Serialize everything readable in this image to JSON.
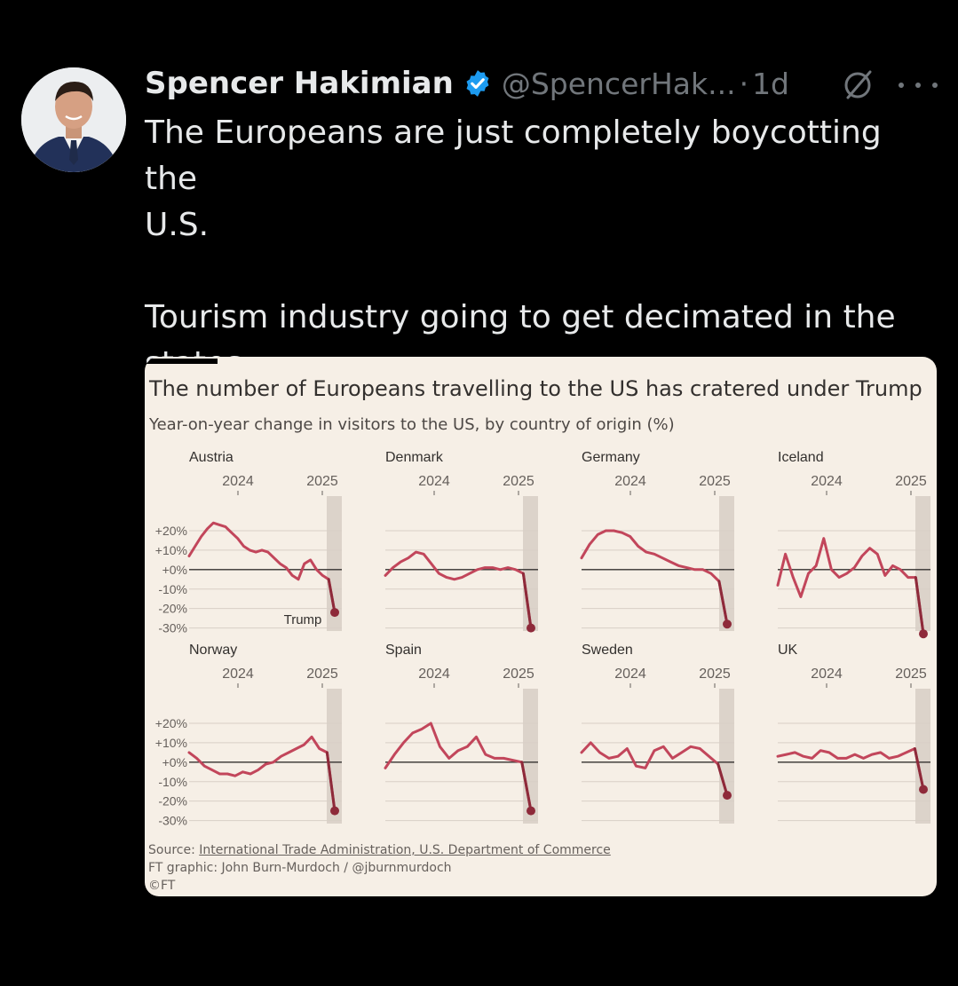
{
  "tweet": {
    "author_name": "Spencer Hakimian",
    "handle": "@SpencerHak...",
    "separator": "·",
    "time": "1d",
    "text": "The Europeans are just completely boycotting the\nU.S.\n\nTourism industry going to get decimated in the\nstates.",
    "verified_color": "#1d9bf0"
  },
  "icons": {
    "avatar": "avatar-photo",
    "verified": "verified-badge-icon",
    "grok": "grok-icon",
    "more": "more-options-icon"
  },
  "card": {
    "title": "The number of Europeans travelling to the US has cratered under Trump",
    "subtitle": "Year-on-year change in visitors to the US, by country of origin (%)",
    "source_prefix": "Source: ",
    "source_link": "International Trade Administration, U.S. Department of Commerce",
    "credit": "FT graphic: John Burn-Murdoch / @jburnmurdoch",
    "copyright": "©FT"
  },
  "chart_data": {
    "type": "line",
    "line_color": "#c2465b",
    "y_ticks": [
      "+20%",
      "+10%",
      "+0%",
      "-10%",
      "-20%",
      "-30%"
    ],
    "y_tick_values": [
      20,
      10,
      0,
      -10,
      -20,
      -30
    ],
    "ylim": [
      -32,
      25
    ],
    "x_ticks": [
      "2024",
      "2025"
    ],
    "annotation": "Trump",
    "panels": [
      {
        "name": "Austria",
        "values": [
          7,
          12,
          17,
          21,
          24,
          23,
          22,
          19,
          16,
          12,
          10,
          9,
          10,
          9,
          6,
          3,
          1,
          -3,
          -5,
          3,
          5,
          0,
          -3,
          -5,
          -22
        ]
      },
      {
        "name": "Denmark",
        "values": [
          -3,
          1,
          4,
          6,
          9,
          8,
          3,
          -2,
          -4,
          -5,
          -4,
          -2,
          0,
          1,
          1,
          0,
          1,
          0,
          -2,
          -30
        ]
      },
      {
        "name": "Germany",
        "values": [
          6,
          13,
          18,
          20,
          20,
          19,
          17,
          12,
          9,
          8,
          6,
          4,
          2,
          1,
          0,
          0,
          -2,
          -6,
          -28
        ]
      },
      {
        "name": "Iceland",
        "values": [
          -8,
          8,
          -4,
          -14,
          -2,
          2,
          16,
          0,
          -4,
          -2,
          1,
          7,
          11,
          8,
          -3,
          2,
          0,
          -4,
          -4,
          -33
        ]
      },
      {
        "name": "Norway",
        "values": [
          5,
          2,
          -2,
          -4,
          -6,
          -6,
          -7,
          -5,
          -6,
          -4,
          -1,
          0,
          3,
          5,
          7,
          9,
          13,
          7,
          5,
          -25
        ]
      },
      {
        "name": "Spain",
        "values": [
          -3,
          4,
          10,
          15,
          17,
          20,
          8,
          2,
          6,
          8,
          13,
          4,
          2,
          2,
          1,
          0,
          -25
        ]
      },
      {
        "name": "Sweden",
        "values": [
          5,
          10,
          5,
          2,
          3,
          7,
          -2,
          -3,
          6,
          8,
          2,
          5,
          8,
          7,
          3,
          -1,
          -17
        ]
      },
      {
        "name": "UK",
        "values": [
          3,
          4,
          5,
          3,
          2,
          6,
          5,
          2,
          2,
          4,
          2,
          4,
          5,
          2,
          3,
          5,
          7,
          -14
        ]
      }
    ]
  }
}
